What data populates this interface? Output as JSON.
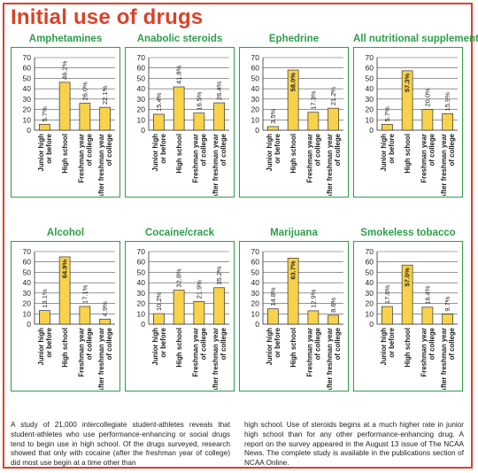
{
  "title": "Initial use of drugs",
  "colors": {
    "frame": "#d9432a",
    "panel": "#2e9e49",
    "bar": "#f7d24a",
    "bar_stroke": "#333333",
    "grid": "#555555"
  },
  "chart_data": [
    {
      "type": "bar",
      "title": "Amphetamines",
      "categories": [
        "Junior high or before",
        "High school",
        "Freshman year of college",
        "After freshman year of college"
      ],
      "values": [
        5.7,
        46.2,
        26.0,
        22.1
      ],
      "labels": [
        "5.7%",
        "46.2%",
        "26.0%",
        "22.1%"
      ],
      "ylim": [
        0,
        70
      ],
      "yticks": [
        0,
        10,
        20,
        30,
        40,
        50,
        60,
        70
      ],
      "grid": true
    },
    {
      "type": "bar",
      "title": "Anabolic steroids",
      "categories": [
        "Junior high or before",
        "High school",
        "Freshman year of college",
        "After freshman year of college"
      ],
      "values": [
        15.4,
        41.8,
        16.5,
        26.4
      ],
      "labels": [
        "15.4%",
        "41.8%",
        "16.5%",
        "26.4%"
      ],
      "ylim": [
        0,
        70
      ],
      "yticks": [
        0,
        10,
        20,
        30,
        40,
        50,
        60,
        70
      ],
      "grid": true
    },
    {
      "type": "bar",
      "title": "Ephedrine",
      "categories": [
        "Junior high or before",
        "High school",
        "Freshman year of college",
        "After freshman year of college"
      ],
      "values": [
        3.5,
        58.0,
        17.3,
        21.2
      ],
      "labels": [
        "3.5%",
        "58.0%",
        "17.3%",
        "21.2%"
      ],
      "ylim": [
        0,
        70
      ],
      "yticks": [
        0,
        10,
        20,
        30,
        40,
        50,
        60,
        70
      ],
      "grid": true
    },
    {
      "type": "bar",
      "title": "All nutritional supplements",
      "categories": [
        "Junior high or before",
        "High school",
        "Freshman year of college",
        "After freshman year of college"
      ],
      "values": [
        5.7,
        57.3,
        20.0,
        15.9
      ],
      "labels": [
        "5.7%",
        "57.3%",
        "20.0%",
        "15.9%"
      ],
      "ylim": [
        0,
        70
      ],
      "yticks": [
        0,
        10,
        20,
        30,
        40,
        50,
        60,
        70
      ],
      "grid": true
    },
    {
      "type": "bar",
      "title": "Alcohol",
      "categories": [
        "Junior high or before",
        "High school",
        "Freshman year of college",
        "After freshman year of college"
      ],
      "values": [
        13.1,
        64.9,
        17.1,
        4.9
      ],
      "labels": [
        "13.1%",
        "64.9%",
        "17.1%",
        "4.9%"
      ],
      "ylim": [
        0,
        70
      ],
      "yticks": [
        0,
        10,
        20,
        30,
        40,
        50,
        60,
        70
      ],
      "grid": true
    },
    {
      "type": "bar",
      "title": "Cocaine/crack",
      "categories": [
        "Junior high or before",
        "High school",
        "Freshman year of college",
        "After freshman year of college"
      ],
      "values": [
        10.2,
        32.8,
        21.9,
        35.2
      ],
      "labels": [
        "10.2%",
        "32.8%",
        "21.9%",
        "35.2%"
      ],
      "ylim": [
        0,
        70
      ],
      "yticks": [
        0,
        10,
        20,
        30,
        40,
        50,
        60,
        70
      ],
      "grid": true
    },
    {
      "type": "bar",
      "title": "Marijuana",
      "categories": [
        "Junior high or before",
        "High school",
        "Freshman year of college",
        "After freshman year of college"
      ],
      "values": [
        14.8,
        63.7,
        12.9,
        8.6
      ],
      "labels": [
        "14.8%",
        "63.7%",
        "12.9%",
        "8.6%"
      ],
      "ylim": [
        0,
        70
      ],
      "yticks": [
        0,
        10,
        20,
        30,
        40,
        50,
        60,
        70
      ],
      "grid": true
    },
    {
      "type": "bar",
      "title": "Smokeless tobacco",
      "categories": [
        "Junior high or before",
        "High school",
        "Freshman year of college",
        "After freshman year of college"
      ],
      "values": [
        17.0,
        57.0,
        16.4,
        9.7
      ],
      "labels": [
        "17.0%",
        "57.0%",
        "16.4%",
        "9.7%"
      ],
      "ylim": [
        0,
        70
      ],
      "yticks": [
        0,
        10,
        20,
        30,
        40,
        50,
        60,
        70
      ],
      "grid": true
    }
  ],
  "caption": {
    "left": "A study of 21,000 intercollegiate student-athletes reveals that student-athletes who use performance-enhancing or social drugs tend to begin use in high school. Of the drugs surveyed, research showed that only with cocaine (after the freshman year of college) did most use begin at a time other than",
    "right": "high school. Use of steroids begins at a much higher rate in junior high school than for any other performance-enhancing drug. A report on the survey appeared in the August 13 issue of The NCAA News. The complete study is available in the publications section of NCAA Online."
  }
}
